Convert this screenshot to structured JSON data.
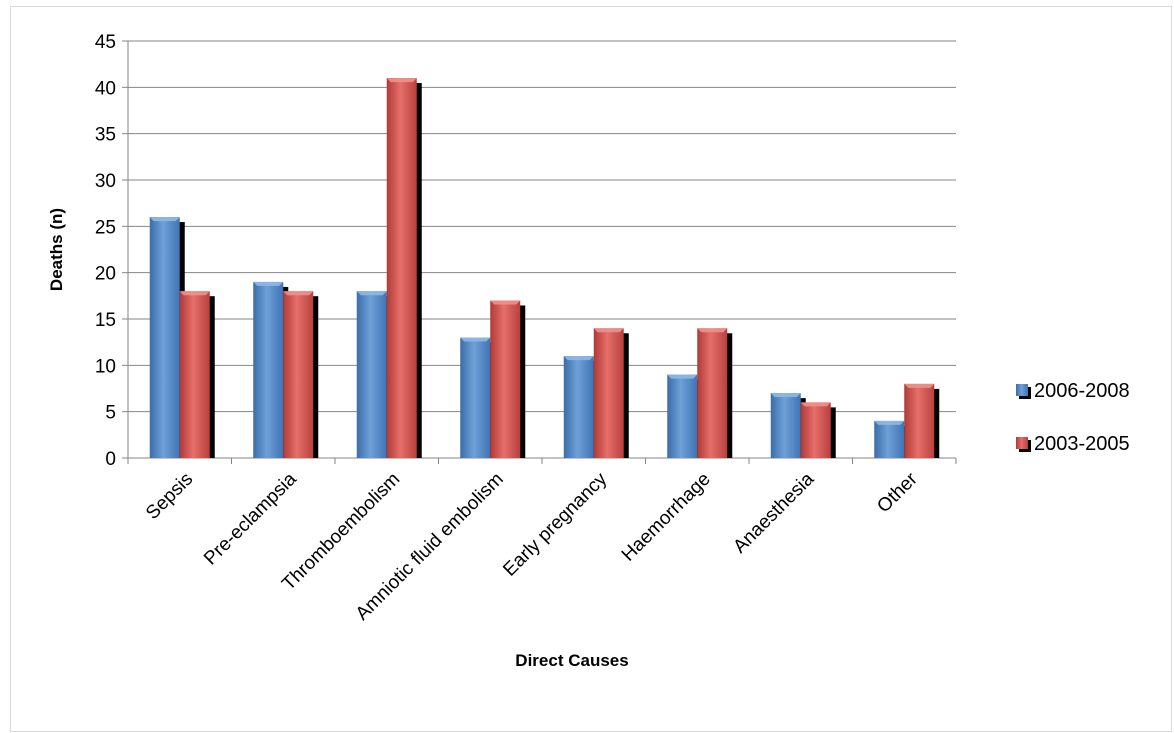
{
  "chart_data": {
    "type": "bar",
    "title": "",
    "xlabel": "Direct Causes",
    "ylabel": "Deaths (n)",
    "ylim": [
      0,
      45
    ],
    "yticks": [
      0,
      5,
      10,
      15,
      20,
      25,
      30,
      35,
      40,
      45
    ],
    "grid": true,
    "legend_position": "right",
    "categories": [
      "Sepsis",
      "Pre-eclampsia",
      "Thromboembolism",
      "Amniotic fluid embolism",
      "Early pregnancy",
      "Haemorrhage",
      "Anaesthesia",
      "Other"
    ],
    "series": [
      {
        "name": "2006-2008",
        "color": "#4f81bd",
        "values": [
          26,
          19,
          18,
          13,
          11,
          9,
          7,
          4
        ]
      },
      {
        "name": "2003-2005",
        "color": "#c0504d",
        "values": [
          18,
          18,
          41,
          17,
          14,
          14,
          6,
          8
        ]
      }
    ]
  }
}
